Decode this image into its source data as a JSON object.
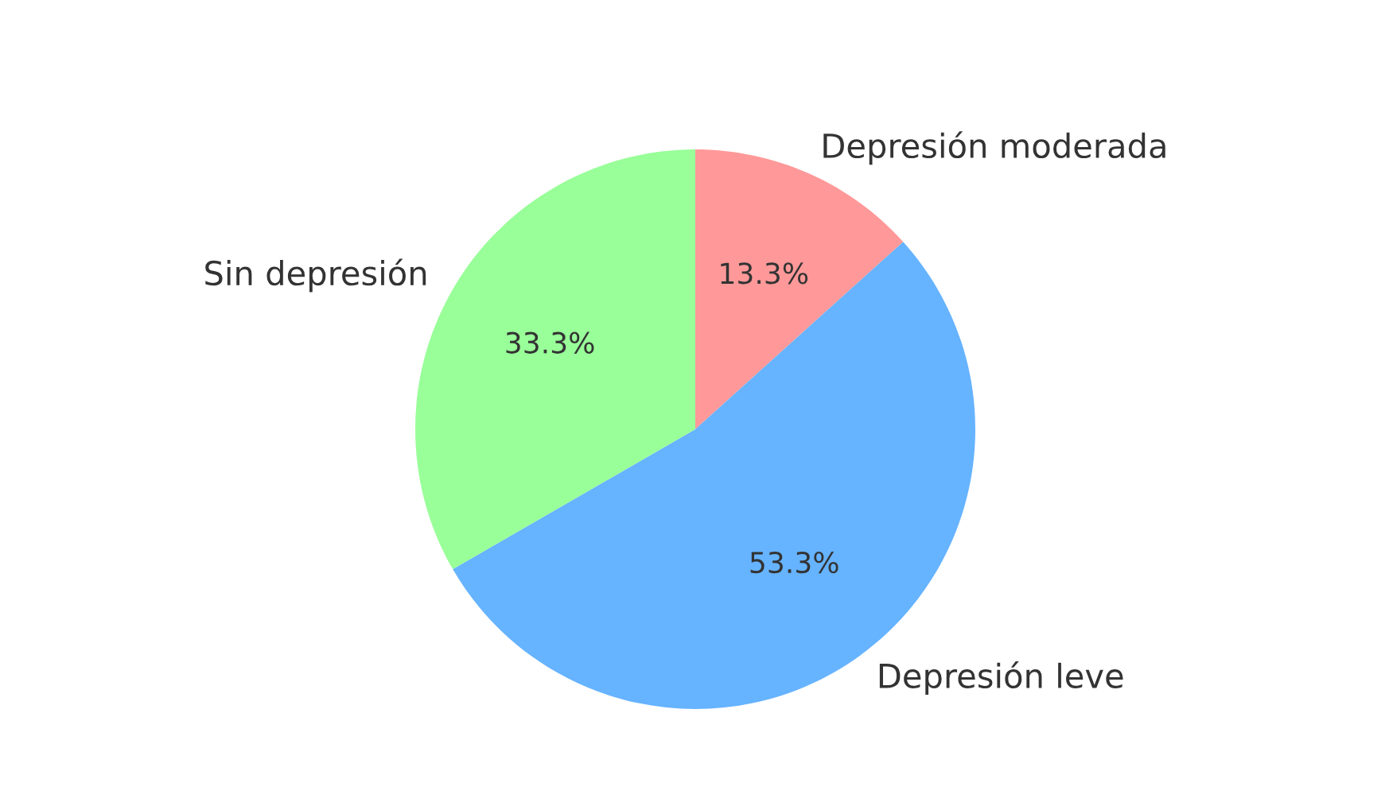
{
  "chart_data": {
    "type": "pie",
    "categories": [
      "Depresión moderada",
      "Depresión leve",
      "Sin depresión"
    ],
    "values": [
      13.3,
      53.3,
      33.3
    ],
    "colors": [
      "#ff9999",
      "#66b3ff",
      "#99ff99"
    ],
    "value_labels": [
      "13.3%",
      "53.3%",
      "33.3%"
    ]
  }
}
